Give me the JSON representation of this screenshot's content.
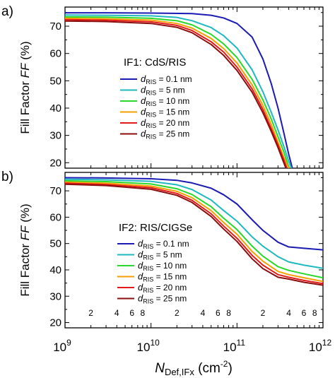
{
  "figure": {
    "ylabel_main": "Fill Factor ",
    "ylabel_italic": "FF",
    "ylabel_unit": " (%)",
    "xlabel_main": "N",
    "xlabel_sub": "Def,IFx",
    "xlabel_unit": " (cm",
    "xlabel_exp": "-2",
    "xlabel_close": ")"
  },
  "chart_data": [
    {
      "type": "line",
      "panel_label": "a)",
      "annotation": "IF1: CdS/RIS",
      "xscale": "log",
      "xlim": [
        1000000000.0,
        1000000000000.0
      ],
      "ylim": [
        18,
        77
      ],
      "yticks": [
        20,
        30,
        40,
        50,
        60,
        70
      ],
      "xtick_labels": [
        {
          "x": 1000000000.0,
          "base": "10",
          "exp": "9"
        },
        {
          "x": 10000000000.0,
          "base": "10",
          "exp": "10"
        },
        {
          "x": 100000000000.0,
          "base": "10",
          "exp": "11"
        },
        {
          "x": 1000000000000.0,
          "base": "10",
          "exp": "12"
        }
      ],
      "minor_tick_labels": [],
      "grid": false,
      "legend_position": "center-right",
      "series": [
        {
          "sym": "d",
          "sub": "RIS",
          "rest": " = 0.1 nm",
          "color": "#1a1ab4",
          "points": [
            [
              1000000000.0,
              74.9
            ],
            [
              3000000000.0,
              74.9
            ],
            [
              10000000000.0,
              74.8
            ],
            [
              30000000000.0,
              74.6
            ],
            [
              50000000000.0,
              74.0
            ],
            [
              70000000000.0,
              73.0
            ],
            [
              100000000000.0,
              71.0
            ],
            [
              150000000000.0,
              66.0
            ],
            [
              200000000000.0,
              58.0
            ],
            [
              250000000000.0,
              49.0
            ],
            [
              300000000000.0,
              40.0
            ],
            [
              350000000000.0,
              31.0
            ],
            [
              400000000000.0,
              23.0
            ],
            [
              440000000000.0,
              18.0
            ]
          ]
        },
        {
          "sym": "d",
          "sub": "RIS",
          "rest": " = 5 nm",
          "color": "#1fb8c0",
          "points": [
            [
              1000000000.0,
              74.1
            ],
            [
              3000000000.0,
              74.0
            ],
            [
              10000000000.0,
              73.8
            ],
            [
              20000000000.0,
              73.2
            ],
            [
              30000000000.0,
              72.0
            ],
            [
              50000000000.0,
              69.5
            ],
            [
              70000000000.0,
              66.5
            ],
            [
              100000000000.0,
              62.0
            ],
            [
              150000000000.0,
              54.0
            ],
            [
              200000000000.0,
              46.0
            ],
            [
              250000000000.0,
              38.5
            ],
            [
              300000000000.0,
              32.0
            ],
            [
              350000000000.0,
              26.0
            ],
            [
              400000000000.0,
              20.5
            ],
            [
              430000000000.0,
              18.0
            ]
          ]
        },
        {
          "sym": "d",
          "sub": "RIS",
          "rest": " = 10 nm",
          "color": "#2ad82a",
          "points": [
            [
              1000000000.0,
              73.4
            ],
            [
              3000000000.0,
              73.3
            ],
            [
              10000000000.0,
              72.9
            ],
            [
              20000000000.0,
              72.0
            ],
            [
              30000000000.0,
              70.5
            ],
            [
              50000000000.0,
              67.0
            ],
            [
              70000000000.0,
              63.5
            ],
            [
              100000000000.0,
              58.5
            ],
            [
              150000000000.0,
              50.5
            ],
            [
              200000000000.0,
              43.0
            ],
            [
              250000000000.0,
              36.0
            ],
            [
              300000000000.0,
              29.5
            ],
            [
              350000000000.0,
              24.0
            ],
            [
              400000000000.0,
              18.5
            ],
            [
              410000000000.0,
              18.0
            ]
          ]
        },
        {
          "sym": "d",
          "sub": "RIS",
          "rest": " = 15 nm",
          "color": "#f5a000",
          "points": [
            [
              1000000000.0,
              72.9
            ],
            [
              3000000000.0,
              72.7
            ],
            [
              10000000000.0,
              72.2
            ],
            [
              20000000000.0,
              71.0
            ],
            [
              30000000000.0,
              69.3
            ],
            [
              50000000000.0,
              65.5
            ],
            [
              70000000000.0,
              61.8
            ],
            [
              100000000000.0,
              56.5
            ],
            [
              150000000000.0,
              48.5
            ],
            [
              200000000000.0,
              41.0
            ],
            [
              250000000000.0,
              34.0
            ],
            [
              300000000000.0,
              27.5
            ],
            [
              350000000000.0,
              22.0
            ],
            [
              400000000000.0,
              18.0
            ]
          ]
        },
        {
          "sym": "d",
          "sub": "RIS",
          "rest": " = 20 nm",
          "color": "#e41a1a",
          "points": [
            [
              1000000000.0,
              72.4
            ],
            [
              3000000000.0,
              72.2
            ],
            [
              10000000000.0,
              71.6
            ],
            [
              20000000000.0,
              70.3
            ],
            [
              30000000000.0,
              68.4
            ],
            [
              50000000000.0,
              64.3
            ],
            [
              70000000000.0,
              60.5
            ],
            [
              100000000000.0,
              55.0
            ],
            [
              150000000000.0,
              47.0
            ],
            [
              200000000000.0,
              39.5
            ],
            [
              250000000000.0,
              32.5
            ],
            [
              300000000000.0,
              26.5
            ],
            [
              350000000000.0,
              21.0
            ],
            [
              380000000000.0,
              18.0
            ]
          ]
        },
        {
          "sym": "d",
          "sub": "RIS",
          "rest": " = 25 nm",
          "color": "#8b0d0d",
          "points": [
            [
              1000000000.0,
              71.9
            ],
            [
              3000000000.0,
              71.7
            ],
            [
              10000000000.0,
              71.0
            ],
            [
              20000000000.0,
              69.6
            ],
            [
              30000000000.0,
              67.6
            ],
            [
              50000000000.0,
              63.3
            ],
            [
              70000000000.0,
              59.3
            ],
            [
              100000000000.0,
              53.8
            ],
            [
              150000000000.0,
              45.8
            ],
            [
              200000000000.0,
              38.3
            ],
            [
              250000000000.0,
              31.5
            ],
            [
              300000000000.0,
              25.5
            ],
            [
              350000000000.0,
              20.0
            ],
            [
              370000000000.0,
              18.0
            ]
          ]
        }
      ]
    },
    {
      "type": "line",
      "panel_label": "b)",
      "annotation": "IF2: RIS/CIGSe",
      "xscale": "log",
      "xlim": [
        1000000000.0,
        1000000000000.0
      ],
      "ylim": [
        18,
        77
      ],
      "yticks": [
        20,
        30,
        40,
        50,
        60,
        70
      ],
      "xtick_labels": [
        {
          "x": 1000000000.0,
          "base": "10",
          "exp": "9"
        },
        {
          "x": 10000000000.0,
          "base": "10",
          "exp": "10"
        },
        {
          "x": 100000000000.0,
          "base": "10",
          "exp": "11"
        },
        {
          "x": 1000000000000.0,
          "base": "10",
          "exp": "12"
        }
      ],
      "minor_tick_labels": [
        {
          "x": 2000000000.0,
          "label": "2"
        },
        {
          "x": 4000000000.0,
          "label": "4"
        },
        {
          "x": 6000000000.0,
          "label": "6"
        },
        {
          "x": 8000000000.0,
          "label": "8"
        },
        {
          "x": 20000000000.0,
          "label": "2"
        },
        {
          "x": 40000000000.0,
          "label": "4"
        },
        {
          "x": 60000000000.0,
          "label": "6"
        },
        {
          "x": 80000000000.0,
          "label": "8"
        },
        {
          "x": 200000000000.0,
          "label": "2"
        },
        {
          "x": 400000000000.0,
          "label": "4"
        },
        {
          "x": 600000000000.0,
          "label": "6"
        },
        {
          "x": 800000000000.0,
          "label": "8"
        }
      ],
      "grid": false,
      "legend_position": "center-right",
      "series": [
        {
          "sym": "d",
          "sub": "RIS",
          "rest": " = 0.1 nm",
          "color": "#1a1ab4",
          "points": [
            [
              1000000000.0,
              75.0
            ],
            [
              3000000000.0,
              74.9
            ],
            [
              10000000000.0,
              74.6
            ],
            [
              20000000000.0,
              74.0
            ],
            [
              30000000000.0,
              73.0
            ],
            [
              50000000000.0,
              71.0
            ],
            [
              70000000000.0,
              68.5
            ],
            [
              100000000000.0,
              65.0
            ],
            [
              150000000000.0,
              59.0
            ],
            [
              200000000000.0,
              55.0
            ],
            [
              300000000000.0,
              50.5
            ],
            [
              400000000000.0,
              48.7
            ],
            [
              600000000000.0,
              48.2
            ],
            [
              1000000000000.0,
              47.6
            ]
          ]
        },
        {
          "sym": "d",
          "sub": "RIS",
          "rest": " = 5 nm",
          "color": "#1fb8c0",
          "points": [
            [
              1000000000.0,
              74.4
            ],
            [
              3000000000.0,
              74.2
            ],
            [
              10000000000.0,
              73.6
            ],
            [
              20000000000.0,
              72.3
            ],
            [
              30000000000.0,
              70.5
            ],
            [
              50000000000.0,
              66.5
            ],
            [
              70000000000.0,
              62.5
            ],
            [
              100000000000.0,
              58.5
            ],
            [
              150000000000.0,
              52.5
            ],
            [
              200000000000.0,
              49.0
            ],
            [
              300000000000.0,
              45.0
            ],
            [
              400000000000.0,
              43.0
            ],
            [
              600000000000.0,
              41.8
            ],
            [
              1000000000000.0,
              40.6
            ]
          ]
        },
        {
          "sym": "d",
          "sub": "RIS",
          "rest": " = 10 nm",
          "color": "#2ad82a",
          "points": [
            [
              1000000000.0,
              73.8
            ],
            [
              3000000000.0,
              73.5
            ],
            [
              10000000000.0,
              72.6
            ],
            [
              20000000000.0,
              70.8
            ],
            [
              30000000000.0,
              68.6
            ],
            [
              50000000000.0,
              64.0
            ],
            [
              70000000000.0,
              59.6
            ],
            [
              100000000000.0,
              55.3
            ],
            [
              150000000000.0,
              49.0
            ],
            [
              200000000000.0,
              45.2
            ],
            [
              300000000000.0,
              41.2
            ],
            [
              400000000000.0,
              39.8
            ],
            [
              600000000000.0,
              38.5
            ],
            [
              1000000000000.0,
              37.0
            ]
          ]
        },
        {
          "sym": "d",
          "sub": "RIS",
          "rest": " = 15 nm",
          "color": "#f5a000",
          "points": [
            [
              1000000000.0,
              73.3
            ],
            [
              3000000000.0,
              72.9
            ],
            [
              10000000000.0,
              71.8
            ],
            [
              20000000000.0,
              69.8
            ],
            [
              30000000000.0,
              67.4
            ],
            [
              50000000000.0,
              62.5
            ],
            [
              70000000000.0,
              58.0
            ],
            [
              100000000000.0,
              53.5
            ],
            [
              150000000000.0,
              47.0
            ],
            [
              200000000000.0,
              43.3
            ],
            [
              300000000000.0,
              39.4
            ],
            [
              400000000000.0,
              38.2
            ],
            [
              600000000000.0,
              37.0
            ],
            [
              1000000000000.0,
              35.6
            ]
          ]
        },
        {
          "sym": "d",
          "sub": "RIS",
          "rest": " = 20 nm",
          "color": "#e41a1a",
          "points": [
            [
              1000000000.0,
              72.9
            ],
            [
              3000000000.0,
              72.4
            ],
            [
              10000000000.0,
              71.2
            ],
            [
              20000000000.0,
              69.0
            ],
            [
              30000000000.0,
              66.4
            ],
            [
              50000000000.0,
              61.3
            ],
            [
              70000000000.0,
              56.6
            ],
            [
              100000000000.0,
              52.0
            ],
            [
              150000000000.0,
              45.5
            ],
            [
              200000000000.0,
              41.8
            ],
            [
              300000000000.0,
              38.2
            ],
            [
              400000000000.0,
              37.2
            ],
            [
              600000000000.0,
              36.0
            ],
            [
              1000000000000.0,
              34.8
            ]
          ]
        },
        {
          "sym": "d",
          "sub": "RIS",
          "rest": " = 25 nm",
          "color": "#8b0d0d",
          "points": [
            [
              1000000000.0,
              72.5
            ],
            [
              3000000000.0,
              72.0
            ],
            [
              10000000000.0,
              70.6
            ],
            [
              20000000000.0,
              68.3
            ],
            [
              30000000000.0,
              65.6
            ],
            [
              50000000000.0,
              60.3
            ],
            [
              70000000000.0,
              55.5
            ],
            [
              100000000000.0,
              50.8
            ],
            [
              150000000000.0,
              44.2
            ],
            [
              200000000000.0,
              40.5
            ],
            [
              300000000000.0,
              37.2
            ],
            [
              400000000000.0,
              36.5
            ],
            [
              600000000000.0,
              35.3
            ],
            [
              1000000000000.0,
              34.2
            ]
          ]
        }
      ]
    }
  ]
}
